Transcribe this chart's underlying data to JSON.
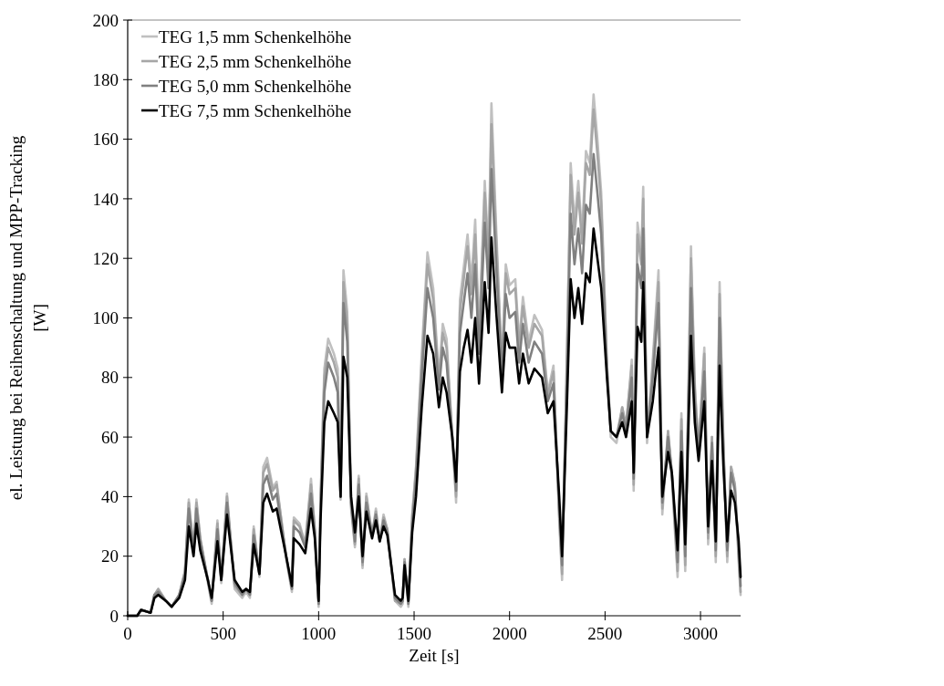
{
  "chart_data": {
    "type": "line",
    "xlabel": "Zeit [s]",
    "ylabel": "el. Leistung bei Reihenschaltung und MPP-Tracking [W]",
    "x": [
      0,
      50,
      70,
      120,
      140,
      160,
      200,
      230,
      270,
      300,
      320,
      345,
      360,
      380,
      420,
      440,
      470,
      490,
      520,
      560,
      600,
      620,
      640,
      660,
      690,
      710,
      730,
      760,
      780,
      830,
      860,
      870,
      900,
      930,
      960,
      980,
      1000,
      1010,
      1030,
      1050,
      1080,
      1100,
      1115,
      1130,
      1150,
      1170,
      1190,
      1210,
      1230,
      1250,
      1280,
      1300,
      1320,
      1340,
      1360,
      1400,
      1430,
      1440,
      1450,
      1470,
      1490,
      1510,
      1540,
      1570,
      1600,
      1630,
      1650,
      1670,
      1700,
      1720,
      1740,
      1760,
      1780,
      1800,
      1820,
      1840,
      1870,
      1890,
      1905,
      1930,
      1960,
      1980,
      2000,
      2030,
      2050,
      2070,
      2100,
      2130,
      2170,
      2200,
      2230,
      2260,
      2275,
      2300,
      2320,
      2340,
      2360,
      2380,
      2400,
      2420,
      2440,
      2460,
      2480,
      2510,
      2530,
      2560,
      2590,
      2610,
      2640,
      2650,
      2670,
      2690,
      2700,
      2720,
      2750,
      2780,
      2800,
      2830,
      2850,
      2880,
      2900,
      2920,
      2950,
      2970,
      2990,
      3020,
      3040,
      3060,
      3080,
      3100,
      3120,
      3140,
      3160,
      3180,
      3200,
      3210
    ],
    "series": [
      {
        "name": "TEG 1,5 mm Schenkelhöhe",
        "color": "#c0c0c0",
        "values": [
          0,
          0,
          2,
          1,
          7,
          9,
          5,
          3,
          7,
          15,
          39,
          21,
          39,
          26,
          11,
          4,
          32,
          11,
          41,
          9,
          6,
          8,
          6,
          30,
          13,
          50,
          53,
          43,
          45,
          19,
          8,
          33,
          31,
          24,
          46,
          29,
          3,
          39,
          83,
          93,
          88,
          83,
          39,
          116,
          102,
          36,
          23,
          47,
          16,
          41,
          27,
          36,
          25,
          34,
          29,
          5,
          3,
          4,
          19,
          3,
          34,
          50,
          88,
          122,
          110,
          80,
          98,
          93,
          60,
          38,
          106,
          117,
          128,
          112,
          133,
          94,
          146,
          121,
          172,
          130,
          84,
          118,
          111,
          113,
          92,
          107,
          92,
          101,
          96,
          75,
          84,
          32,
          12,
          87,
          152,
          132,
          146,
          128,
          156,
          152,
          175,
          160,
          142,
          85,
          60,
          58,
          70,
          63,
          86,
          42,
          132,
          122,
          144,
          58,
          86,
          116,
          34,
          62,
          46,
          13,
          68,
          15,
          124,
          78,
          55,
          90,
          24,
          60,
          18,
          112,
          58,
          18,
          50,
          44,
          18,
          7
        ]
      },
      {
        "name": "TEG 2,5 mm Schenkelhöhe",
        "color": "#a6a6a6",
        "values": [
          0,
          0,
          2,
          1,
          7,
          9,
          5,
          3,
          7,
          15,
          38,
          22,
          38,
          26,
          12,
          5,
          31,
          12,
          40,
          10,
          7,
          9,
          7,
          29,
          14,
          48,
          51,
          42,
          44,
          20,
          9,
          32,
          30,
          24,
          44,
          29,
          4,
          38,
          80,
          90,
          85,
          80,
          40,
          112,
          98,
          37,
          24,
          46,
          17,
          40,
          27,
          35,
          25,
          33,
          29,
          5,
          4,
          5,
          19,
          4,
          33,
          49,
          85,
          118,
          106,
          79,
          95,
          90,
          60,
          40,
          102,
          113,
          124,
          108,
          128,
          92,
          142,
          118,
          165,
          126,
          82,
          115,
          108,
          110,
          90,
          104,
          90,
          98,
          94,
          74,
          82,
          34,
          14,
          85,
          148,
          128,
          142,
          125,
          152,
          148,
          170,
          155,
          138,
          84,
          62,
          60,
          70,
          64,
          84,
          44,
          128,
          118,
          140,
          60,
          84,
          112,
          36,
          62,
          48,
          15,
          66,
          17,
          120,
          76,
          56,
          88,
          26,
          60,
          20,
          108,
          57,
          20,
          50,
          44,
          20,
          8
        ]
      },
      {
        "name": "TEG 5,0 mm Schenkelhöhe",
        "color": "#808080",
        "values": [
          0,
          0,
          2,
          1,
          7,
          8,
          5,
          3,
          7,
          14,
          36,
          22,
          36,
          25,
          12,
          5,
          29,
          12,
          38,
          11,
          7,
          9,
          7,
          27,
          14,
          44,
          47,
          39,
          41,
          20,
          9,
          30,
          28,
          23,
          41,
          28,
          4,
          36,
          75,
          85,
          80,
          75,
          40,
          105,
          92,
          38,
          25,
          44,
          18,
          38,
          27,
          34,
          25,
          32,
          28,
          6,
          4,
          5,
          18,
          4,
          31,
          46,
          80,
          110,
          100,
          76,
          90,
          85,
          60,
          42,
          95,
          105,
          115,
          100,
          118,
          88,
          132,
          110,
          150,
          118,
          80,
          108,
          100,
          102,
          85,
          98,
          85,
          92,
          88,
          72,
          78,
          36,
          17,
          80,
          135,
          118,
          130,
          115,
          138,
          135,
          155,
          142,
          128,
          82,
          62,
          60,
          68,
          62,
          80,
          46,
          118,
          110,
          130,
          60,
          80,
          105,
          38,
          60,
          48,
          18,
          62,
          20,
          110,
          72,
          55,
          82,
          28,
          58,
          22,
          100,
          55,
          22,
          48,
          42,
          22,
          10
        ]
      },
      {
        "name": "TEG 7,5 mm Schenkelhöhe",
        "color": "#000000",
        "values": [
          0,
          0,
          2,
          1,
          6,
          7,
          5,
          3,
          6,
          12,
          30,
          20,
          31,
          22,
          12,
          6,
          25,
          12,
          34,
          12,
          8,
          9,
          8,
          24,
          14,
          38,
          41,
          35,
          36,
          20,
          10,
          26,
          24,
          21,
          36,
          26,
          5,
          32,
          65,
          72,
          68,
          65,
          40,
          87,
          80,
          40,
          28,
          40,
          20,
          35,
          26,
          32,
          25,
          30,
          27,
          7,
          5,
          6,
          17,
          5,
          28,
          40,
          70,
          94,
          88,
          70,
          80,
          75,
          60,
          45,
          82,
          90,
          96,
          85,
          100,
          78,
          112,
          95,
          127,
          102,
          75,
          95,
          90,
          90,
          78,
          88,
          78,
          83,
          80,
          68,
          72,
          40,
          20,
          70,
          113,
          100,
          110,
          98,
          115,
          112,
          130,
          120,
          110,
          80,
          62,
          60,
          65,
          60,
          72,
          48,
          97,
          92,
          112,
          60,
          72,
          90,
          40,
          55,
          48,
          22,
          55,
          24,
          94,
          65,
          52,
          72,
          30,
          52,
          25,
          84,
          50,
          25,
          42,
          38,
          25,
          13
        ]
      }
    ],
    "xlim": [
      0,
      3210
    ],
    "xticks": [
      0,
      500,
      1000,
      1500,
      2000,
      2500,
      3000
    ],
    "ylim": [
      0,
      200
    ],
    "yticks": [
      0,
      20,
      40,
      60,
      80,
      100,
      120,
      140,
      160,
      180,
      200
    ],
    "grid": false,
    "legend": "top left",
    "marker": "none",
    "line_style": "solid"
  }
}
